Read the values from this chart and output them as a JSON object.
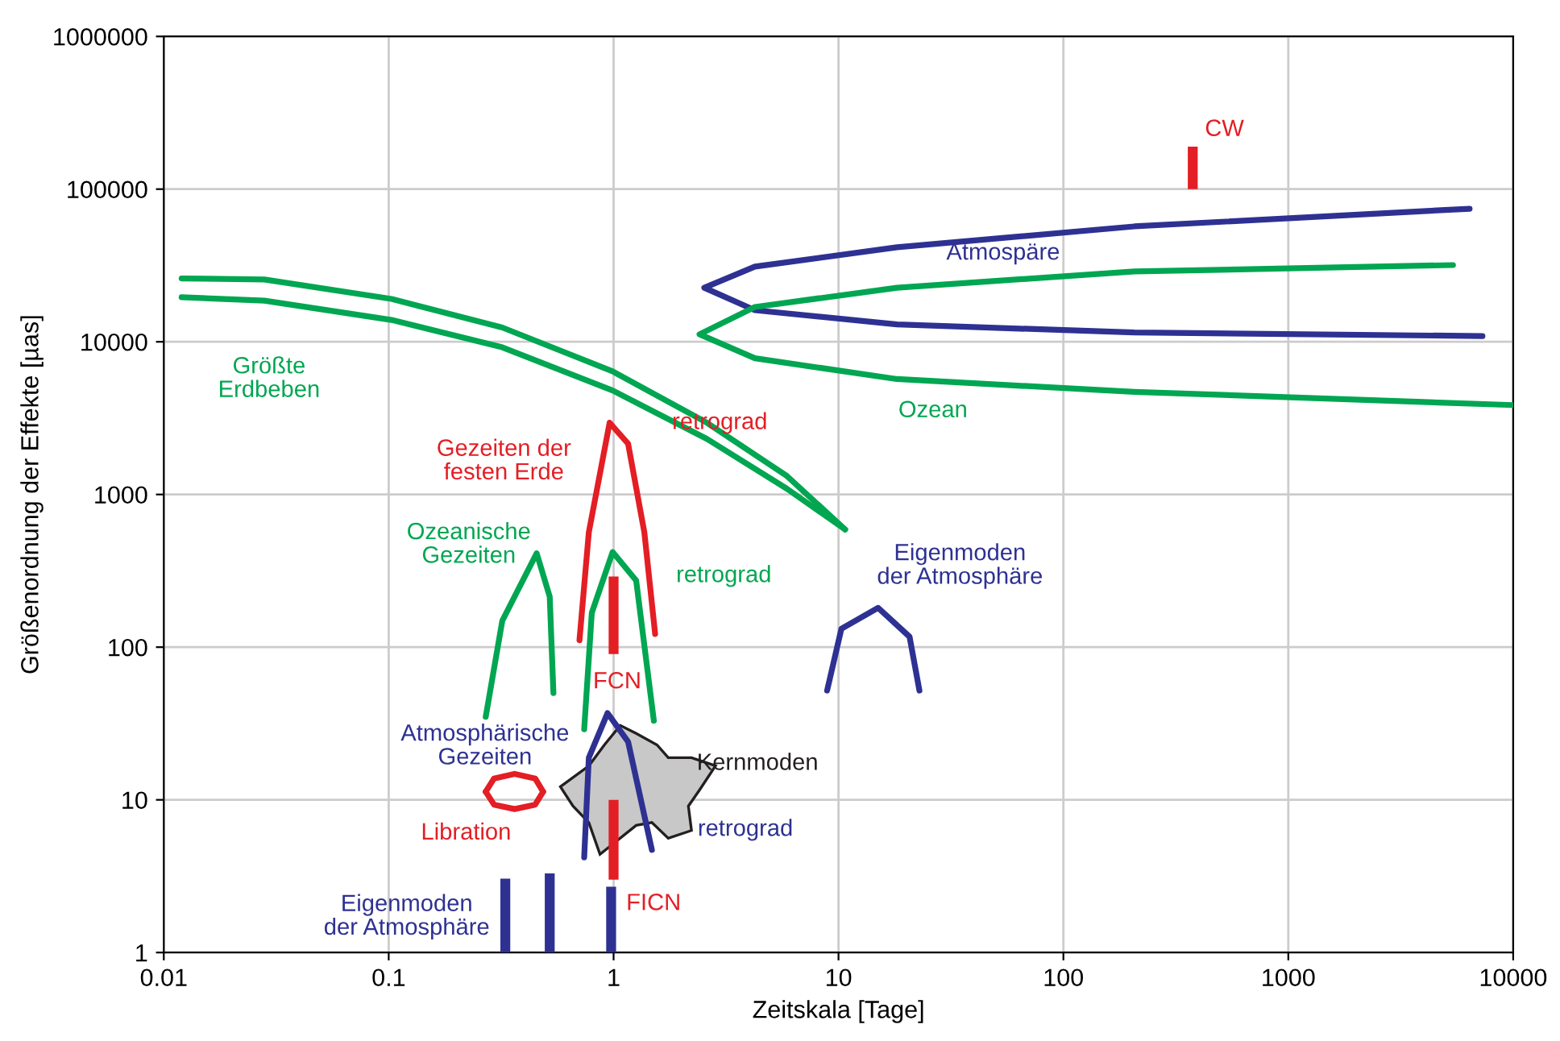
{
  "chart_data": {
    "type": "line",
    "xlabel": "Zeitskala [Tage]",
    "ylabel": "Größenordnung der Effekte [µas]",
    "log": "xy",
    "grid": true,
    "xlim": [
      0.01,
      10000
    ],
    "ylim": [
      1,
      1000000
    ],
    "xticks": [
      {
        "value": 0.01,
        "label": "0.01"
      },
      {
        "value": 0.1,
        "label": "0.1"
      },
      1,
      10,
      100,
      1000,
      10000
    ],
    "yticks": [
      1,
      10,
      100,
      1000,
      10000,
      100000,
      1000000
    ],
    "series": [
      {
        "color": "#00a651",
        "x": [
          0.012,
          0.028,
          0.103,
          0.32,
          0.99,
          2.6,
          5.9,
          10.7
        ],
        "values": [
          26000,
          25600,
          19100,
          12400,
          6400,
          2950,
          1320,
          590
        ]
      },
      {
        "color": "#00a651",
        "x": [
          0.012,
          0.028,
          0.103,
          0.32,
          0.99,
          2.6,
          5.9,
          10.7
        ],
        "values": [
          19600,
          18600,
          13900,
          9200,
          4800,
          2310,
          1090,
          590
        ]
      },
      {
        "color": "#2e3192",
        "x": [
          6400,
          207,
          18.2,
          4.25,
          2.53,
          4.25,
          18.2,
          207,
          7300
        ],
        "values": [
          74400,
          57000,
          41600,
          31100,
          22600,
          16100,
          13000,
          11500,
          10900
        ]
      },
      {
        "color": "#00a651",
        "x": [
          5400,
          207,
          18.2,
          4.25,
          2.41,
          4.25,
          18.2,
          207,
          10000
        ],
        "values": [
          31800,
          28900,
          22600,
          16900,
          11200,
          7800,
          5700,
          4700,
          3850
        ]
      },
      {
        "color": "#e31e24",
        "x": [
          0.705,
          0.776,
          0.96,
          1.16,
          1.37,
          1.53
        ],
        "values": [
          111,
          565,
          2950,
          2150,
          565,
          122
        ]
      },
      {
        "color": "#00a651",
        "x": [
          0.74,
          0.8,
          0.99,
          1.26,
          1.51
        ],
        "values": [
          29,
          168,
          420,
          273,
          33
        ]
      },
      {
        "color": "#00a651",
        "x": [
          0.27,
          0.32,
          0.455,
          0.52,
          0.54
        ],
        "values": [
          35,
          149,
          412,
          214,
          50
        ]
      },
      {
        "color": "#2e3192",
        "x": [
          0.74,
          0.776,
          0.94,
          1.16,
          1.48
        ],
        "values": [
          4.2,
          18.9,
          37,
          24,
          4.7
        ]
      },
      {
        "color": "#2e3192",
        "x": [
          8.9,
          10.3,
          15,
          20.7,
          22.9
        ],
        "values": [
          52,
          132,
          181,
          117,
          52
        ]
      },
      {
        "color": "#e31e24",
        "x": [
          0.27,
          0.294,
          0.363,
          0.448,
          0.486
        ],
        "values": [
          11.3,
          13.8,
          14.8,
          13.8,
          11.3
        ]
      },
      {
        "color": "#e31e24",
        "x": [
          0.27,
          0.294,
          0.363,
          0.448,
          0.486
        ],
        "values": [
          11.3,
          9.3,
          8.7,
          9.3,
          11.3
        ]
      },
      {
        "type": "area",
        "color": "#c8c8c8",
        "x": [
          0.58,
          0.776,
          0.91,
          1.07,
          1.26,
          1.56,
          1.75,
          2.22,
          2.84,
          2.41,
          2.15,
          2.22,
          1.75,
          1.48,
          1.26,
          0.87,
          0.776,
          0.66
        ],
        "values": [
          12.2,
          16.7,
          22.9,
          30.7,
          27.2,
          22.9,
          18.9,
          18.9,
          16.7,
          11.6,
          9.1,
          6.3,
          5.6,
          7.1,
          6.8,
          4.4,
          7.1,
          9.1
        ]
      },
      {
        "type": "bar",
        "color": "#e31e24",
        "x": [
          1.0,
          376
        ],
        "base": [
          90,
          100000
        ],
        "values": [
          200,
          90000
        ]
      },
      {
        "type": "bar",
        "color": "#e31e24",
        "x": [
          1.0
        ],
        "base": [
          3
        ],
        "values": [
          7
        ]
      },
      {
        "type": "bar",
        "color": "#2e3192",
        "x": [
          0.33,
          0.52,
          0.975
        ],
        "base": [
          1,
          1,
          1
        ],
        "values": [
          2.05,
          2.3,
          1.7
        ]
      }
    ],
    "annotations": [
      "CW",
      "Atmospäre",
      "Ozean",
      "Größte\nErdbeben",
      "Gezeiten der\nfesten Erde",
      "retrograd",
      "Ozeanische\nGezeiten",
      "retrograd",
      "Eigenmoden\nder Atmosphäre",
      "FCN",
      "Atmosphärische\nGezeiten",
      "Kernmoden",
      "retrograd",
      "Libration",
      "FICN",
      "Eigenmoden\nder Atmosphäre"
    ]
  }
}
